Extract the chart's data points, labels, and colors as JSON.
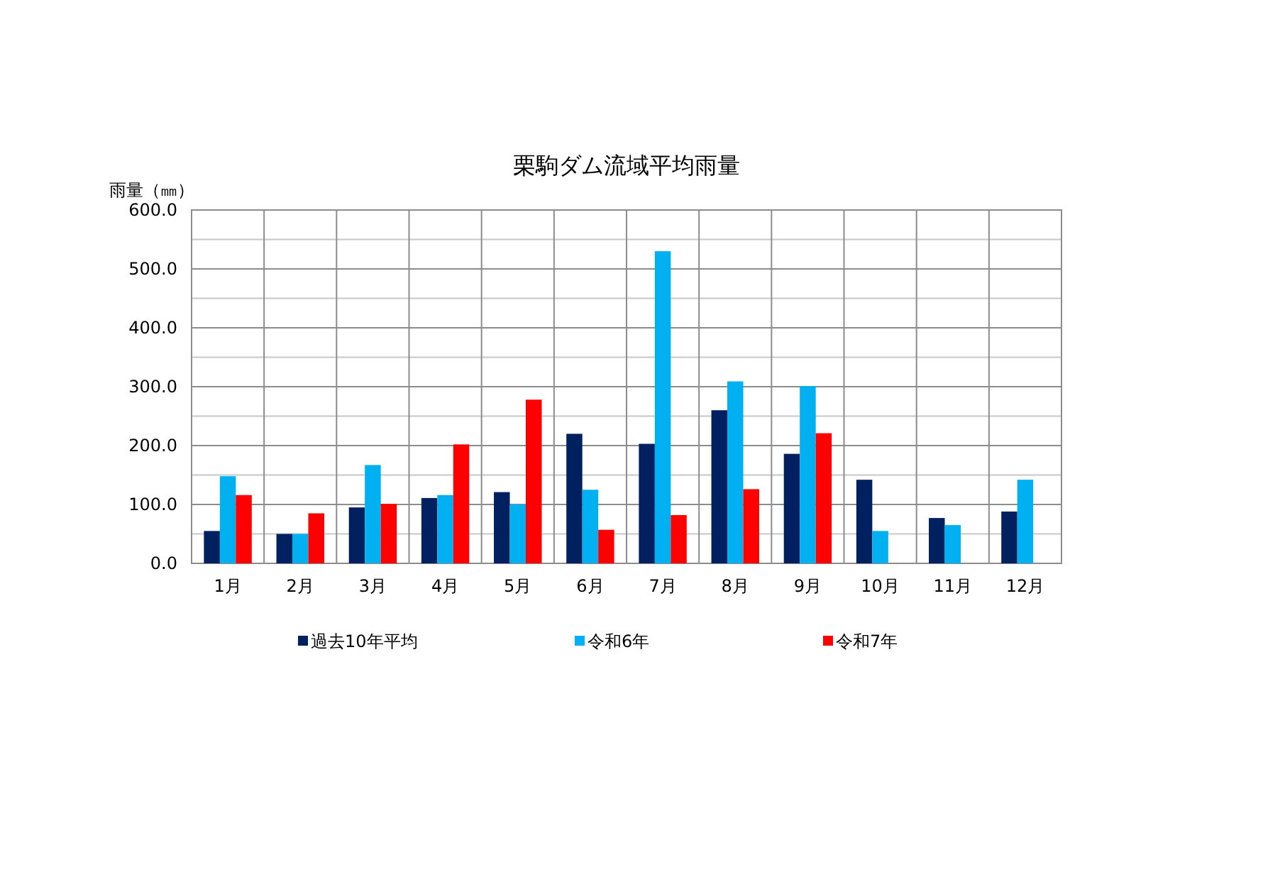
{
  "chart_data": {
    "type": "bar",
    "title": "栗駒ダム流域平均雨量",
    "ylabel": "雨量（㎜）",
    "categories": [
      "1月",
      "2月",
      "3月",
      "4月",
      "5月",
      "6月",
      "7月",
      "8月",
      "9月",
      "10月",
      "11月",
      "12月"
    ],
    "series": [
      {
        "name": "過去10年平均",
        "color": "#002060",
        "values": [
          55,
          50,
          95,
          111,
          121,
          220,
          203,
          260,
          186,
          142,
          77,
          88
        ]
      },
      {
        "name": "令和6年",
        "color": "#00b0f0",
        "values": [
          148,
          50,
          167,
          116,
          100,
          125,
          530,
          309,
          301,
          55,
          65,
          142
        ]
      },
      {
        "name": "令和7年",
        "color": "#ff0000",
        "values": [
          116,
          85,
          101,
          202,
          278,
          57,
          82,
          126,
          221,
          null,
          null,
          null
        ]
      }
    ],
    "ylim": [
      0,
      600
    ],
    "yticks": [
      {
        "value": 0,
        "label": "0.0"
      },
      {
        "value": 50,
        "label": null
      },
      {
        "value": 100,
        "label": "100.0"
      },
      {
        "value": 150,
        "label": null
      },
      {
        "value": 200,
        "label": "200.0"
      },
      {
        "value": 250,
        "label": null
      },
      {
        "value": 300,
        "label": "300.0"
      },
      {
        "value": 350,
        "label": null
      },
      {
        "value": 400,
        "label": "400.0"
      },
      {
        "value": 450,
        "label": null
      },
      {
        "value": 500,
        "label": "500.0"
      },
      {
        "value": 550,
        "label": null
      },
      {
        "value": 600,
        "label": "600.0"
      }
    ],
    "grid": true,
    "legend": "bottom"
  }
}
